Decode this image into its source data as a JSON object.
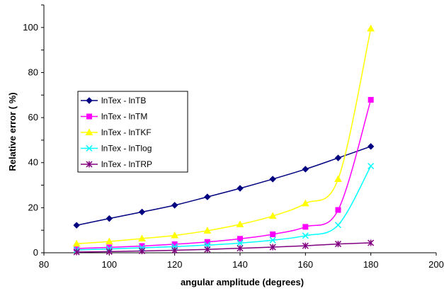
{
  "chart_data": {
    "type": "line",
    "xlabel": "angular amplitude (degrees)",
    "ylabel": "Relative error ( %)",
    "xlim": [
      80,
      200
    ],
    "ylim": [
      0,
      110
    ],
    "xticks": [
      "80",
      "100",
      "120",
      "140",
      "160",
      "180",
      "200"
    ],
    "yticks": [
      "0",
      "20",
      "40",
      "60",
      "80",
      "100"
    ],
    "grid": false,
    "legend_placement": "left-middle",
    "x": [
      90,
      100,
      110,
      120,
      130,
      140,
      150,
      160,
      170,
      180
    ],
    "series": [
      {
        "name": "lnTex - lnTB",
        "color": "#000080",
        "marker": "diamond",
        "values": [
          12.2,
          15.2,
          18.1,
          21.1,
          24.8,
          28.6,
          32.7,
          37.1,
          42.1,
          47.2
        ]
      },
      {
        "name": "lnTex - lnTM",
        "color": "#ff00ff",
        "marker": "square",
        "values": [
          1.9,
          2.4,
          3.0,
          3.8,
          4.8,
          6.2,
          8.2,
          11.5,
          19.0,
          67.9
        ]
      },
      {
        "name": "lnTex - lnTKF",
        "color": "#ffff00",
        "marker": "triangle",
        "values": [
          4.0,
          5.0,
          6.3,
          7.7,
          9.8,
          12.6,
          16.3,
          21.9,
          32.7,
          99.5
        ]
      },
      {
        "name": "lnTex - lnTlog",
        "color": "#00ffff",
        "marker": "x",
        "values": [
          1.3,
          1.7,
          2.2,
          2.7,
          3.4,
          4.3,
          5.6,
          7.6,
          12.3,
          38.5
        ]
      },
      {
        "name": "lnTex - lnTRP",
        "color": "#800080",
        "marker": "star",
        "values": [
          0.3,
          0.5,
          0.8,
          1.1,
          1.5,
          2.0,
          2.5,
          3.1,
          3.9,
          4.4
        ]
      }
    ]
  }
}
